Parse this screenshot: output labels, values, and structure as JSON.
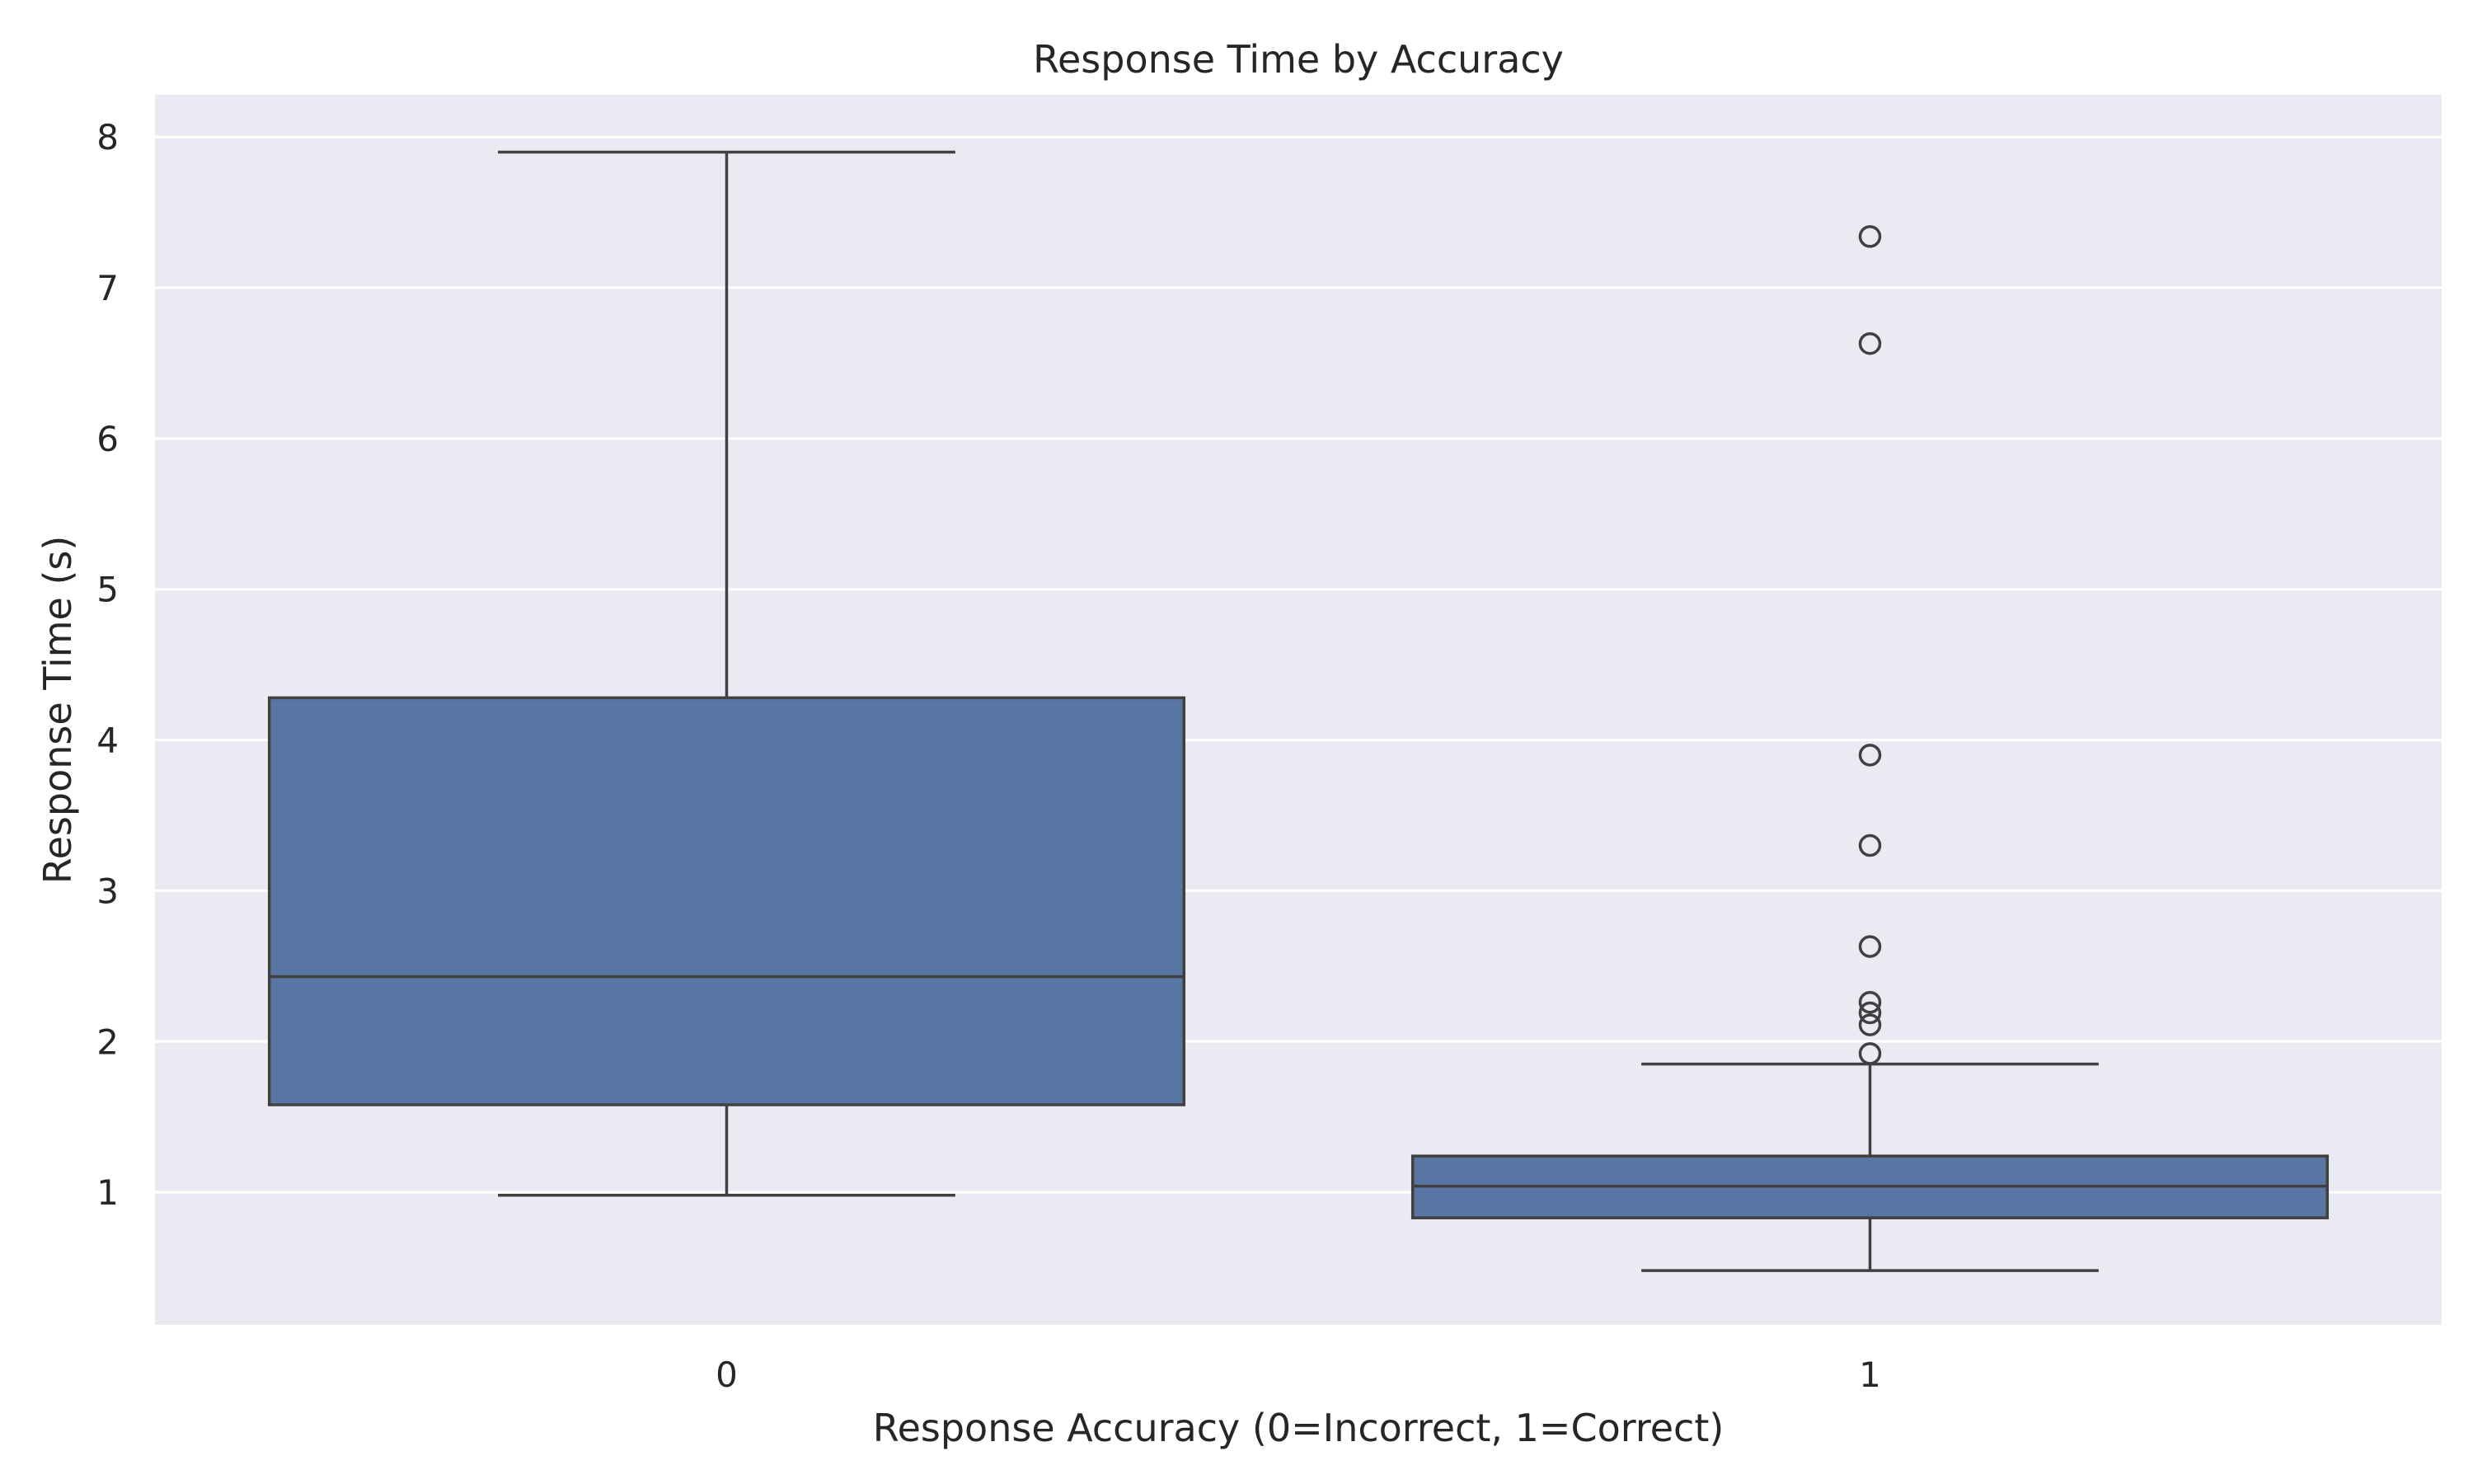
{
  "chart_data": {
    "type": "box",
    "title": "Response Time by Accuracy",
    "xlabel": "Response Accuracy (0=Incorrect, 1=Correct)",
    "ylabel": "Response Time (s)",
    "ylim": [
      0.12,
      8.28
    ],
    "yticks": [
      1,
      2,
      3,
      4,
      5,
      6,
      7,
      8
    ],
    "grid": true,
    "categories": [
      "0",
      "1"
    ],
    "box_color": "#5975a4",
    "line_color": "#404040",
    "background_color": "#eaeaf2",
    "boxes": [
      {
        "category": "0",
        "whisker_low": 0.98,
        "q1": 1.58,
        "median": 2.43,
        "q3": 4.28,
        "whisker_high": 7.9,
        "outliers": []
      },
      {
        "category": "1",
        "whisker_low": 0.48,
        "q1": 0.83,
        "median": 1.04,
        "q3": 1.24,
        "whisker_high": 1.85,
        "outliers": [
          7.34,
          6.63,
          3.9,
          3.3,
          2.63,
          2.26,
          2.19,
          2.11,
          1.92
        ]
      }
    ]
  }
}
